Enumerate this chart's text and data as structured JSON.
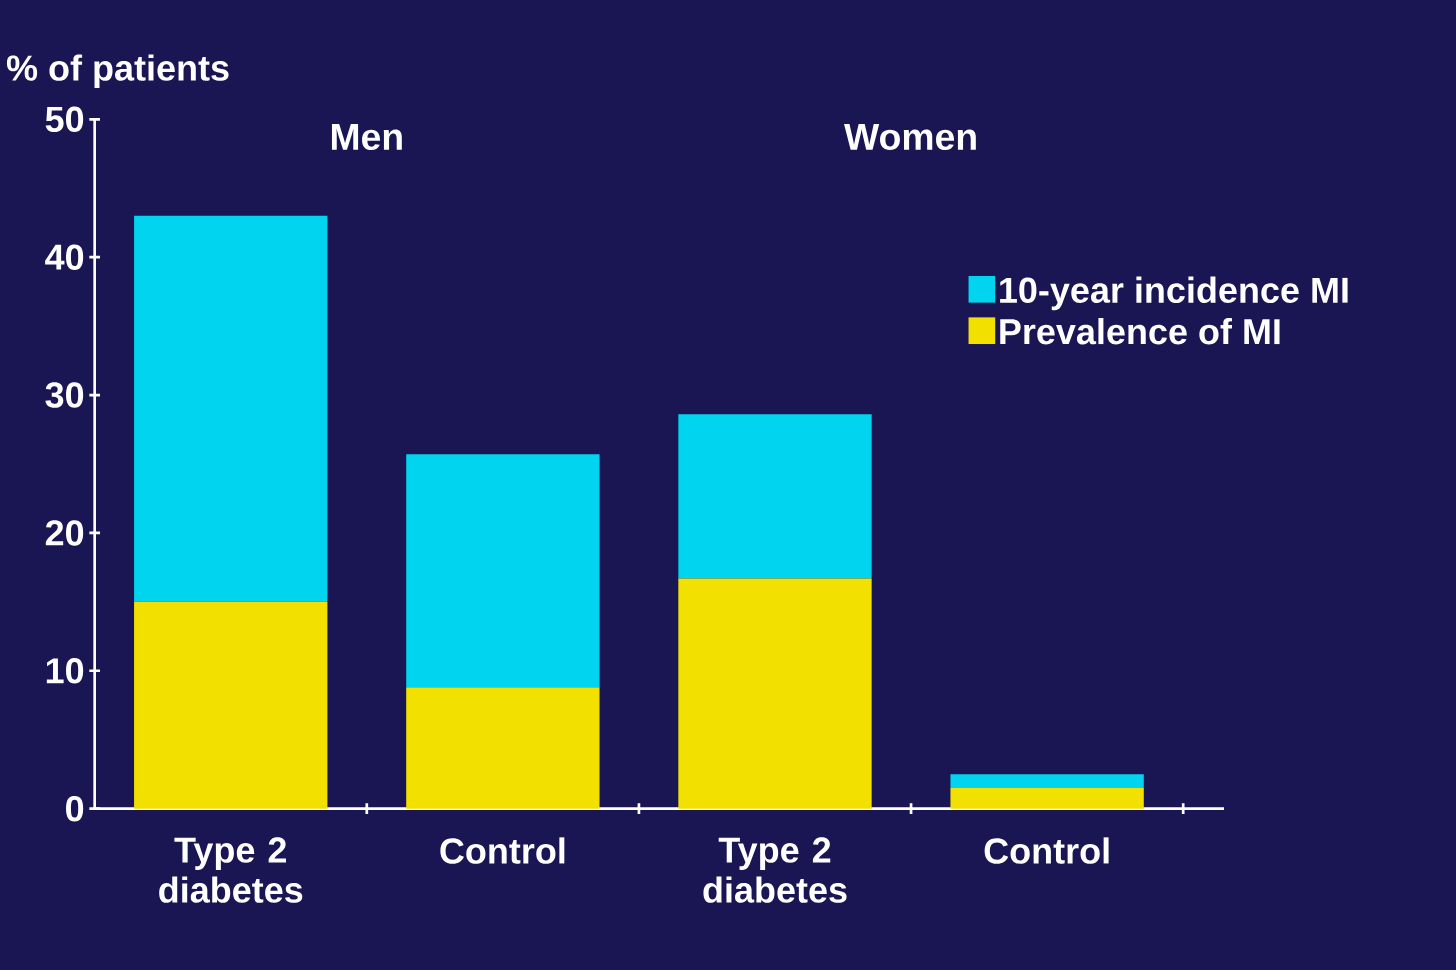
{
  "chart_data": {
    "type": "bar",
    "stacked": true,
    "ylabel": "% of patients",
    "categories": [
      "Type 2 diabetes",
      "Control",
      "Type 2 diabetes",
      "Control"
    ],
    "series": [
      {
        "name": "Prevalence of MI",
        "color": "#f2e000",
        "values": [
          15,
          8.8,
          16.7,
          1.5
        ]
      },
      {
        "name": "10-year incidence MI",
        "color": "#00d4ee",
        "values": [
          28,
          16.9,
          11.9,
          1.0
        ]
      }
    ],
    "annotations": [
      "Men",
      "Women"
    ],
    "ylim": [
      0,
      50
    ],
    "yticks": [
      0,
      10,
      20,
      30,
      40,
      50
    ],
    "legend": "right",
    "grid": false
  }
}
